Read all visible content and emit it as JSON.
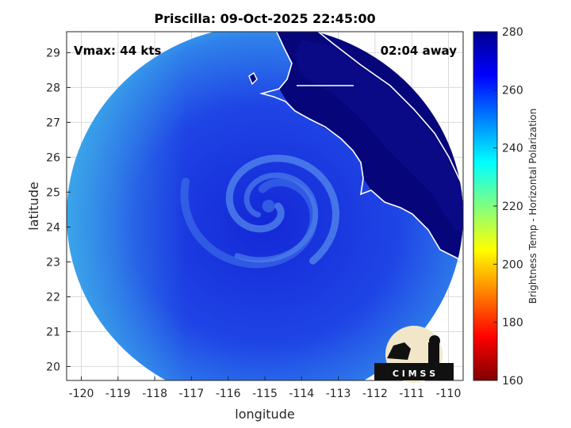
{
  "chart_data": {
    "type": "heatmap",
    "title": "Priscilla: 09-Oct-2025 22:45:00",
    "xlabel": "longitude",
    "ylabel": "latitude",
    "xlim": [
      -120.4,
      -109.6
    ],
    "ylim": [
      19.6,
      29.6
    ],
    "x_ticks": [
      -120,
      -119,
      -118,
      -117,
      -116,
      -115,
      -114,
      -113,
      -112,
      -111,
      -110
    ],
    "y_ticks": [
      20,
      21,
      22,
      23,
      24,
      25,
      26,
      27,
      28,
      29
    ],
    "grid": true,
    "annotations": {
      "vmax": "Vmax: 44 kts",
      "time_away": "02:04 away"
    },
    "storm_center": {
      "lon": -114.9,
      "lat": 24.6
    },
    "colorbar": {
      "label": "Brightness Temp - Horizontal Polarization",
      "range": [
        160,
        280
      ],
      "ticks": [
        160,
        180,
        200,
        220,
        240,
        260,
        280
      ],
      "colors": [
        "#7f0000",
        "#ff0000",
        "#ff8000",
        "#ffff00",
        "#80ff80",
        "#00ffff",
        "#0080ff",
        "#0000ff",
        "#00008f"
      ]
    },
    "logo_text": "C I M S S",
    "colors": {
      "land": "#06067a",
      "ocean_core": "#1b35e0",
      "ocean_outer": "#3fa8ec",
      "coastline": "#ffffff"
    }
  }
}
